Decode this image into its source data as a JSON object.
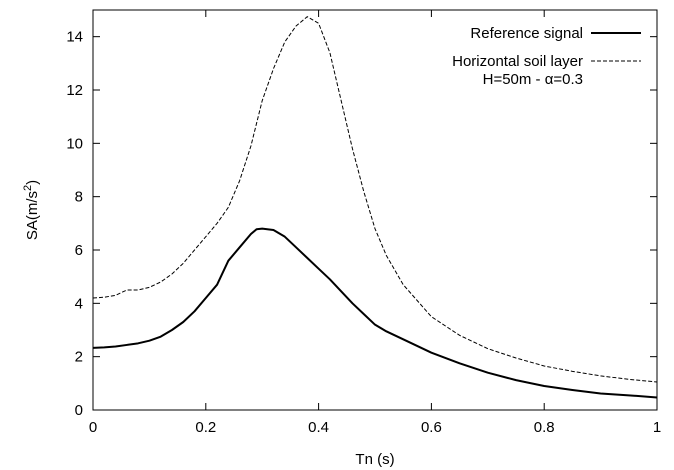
{
  "chart_data": {
    "type": "line",
    "xlabel": "Tn (s)",
    "ylabel_base": "SA(m/s",
    "ylabel_sup": "2",
    "ylabel_close": ")",
    "xlim": [
      0,
      1
    ],
    "ylim": [
      0,
      15
    ],
    "xticks": [
      "0",
      "0.2",
      "0.4",
      "0.6",
      "0.8",
      "1"
    ],
    "yticks": [
      "0",
      "2",
      "4",
      "6",
      "8",
      "10",
      "12",
      "14"
    ],
    "grid": false,
    "legend_position": "top-right",
    "series": [
      {
        "name": "Reference signal",
        "color": "#000000",
        "style": "solid",
        "points": [
          [
            0.0,
            2.33
          ],
          [
            0.02,
            2.35
          ],
          [
            0.04,
            2.38
          ],
          [
            0.06,
            2.44
          ],
          [
            0.08,
            2.5
          ],
          [
            0.1,
            2.6
          ],
          [
            0.12,
            2.75
          ],
          [
            0.14,
            3.0
          ],
          [
            0.16,
            3.3
          ],
          [
            0.18,
            3.7
          ],
          [
            0.2,
            4.2
          ],
          [
            0.22,
            4.7
          ],
          [
            0.24,
            5.6
          ],
          [
            0.26,
            6.1
          ],
          [
            0.28,
            6.6
          ],
          [
            0.29,
            6.78
          ],
          [
            0.3,
            6.8
          ],
          [
            0.32,
            6.75
          ],
          [
            0.34,
            6.5
          ],
          [
            0.36,
            6.1
          ],
          [
            0.38,
            5.7
          ],
          [
            0.4,
            5.3
          ],
          [
            0.42,
            4.9
          ],
          [
            0.44,
            4.45
          ],
          [
            0.46,
            4.0
          ],
          [
            0.48,
            3.6
          ],
          [
            0.5,
            3.2
          ],
          [
            0.52,
            2.95
          ],
          [
            0.55,
            2.65
          ],
          [
            0.6,
            2.15
          ],
          [
            0.65,
            1.75
          ],
          [
            0.7,
            1.4
          ],
          [
            0.75,
            1.12
          ],
          [
            0.8,
            0.9
          ],
          [
            0.85,
            0.75
          ],
          [
            0.9,
            0.62
          ],
          [
            0.95,
            0.55
          ],
          [
            1.0,
            0.47
          ]
        ]
      },
      {
        "name": "Horizontal soil layer",
        "name2": "H=50m - α=0.3",
        "color": "#000000",
        "style": "dashed",
        "points": [
          [
            0.0,
            4.2
          ],
          [
            0.02,
            4.23
          ],
          [
            0.04,
            4.3
          ],
          [
            0.06,
            4.5
          ],
          [
            0.08,
            4.5
          ],
          [
            0.1,
            4.6
          ],
          [
            0.12,
            4.8
          ],
          [
            0.14,
            5.1
          ],
          [
            0.16,
            5.5
          ],
          [
            0.18,
            6.0
          ],
          [
            0.2,
            6.5
          ],
          [
            0.22,
            7.0
          ],
          [
            0.24,
            7.6
          ],
          [
            0.26,
            8.6
          ],
          [
            0.28,
            9.9
          ],
          [
            0.3,
            11.6
          ],
          [
            0.32,
            12.8
          ],
          [
            0.34,
            13.8
          ],
          [
            0.36,
            14.4
          ],
          [
            0.38,
            14.75
          ],
          [
            0.4,
            14.5
          ],
          [
            0.42,
            13.4
          ],
          [
            0.44,
            11.6
          ],
          [
            0.46,
            9.8
          ],
          [
            0.48,
            8.2
          ],
          [
            0.5,
            6.8
          ],
          [
            0.52,
            5.8
          ],
          [
            0.55,
            4.7
          ],
          [
            0.6,
            3.5
          ],
          [
            0.65,
            2.8
          ],
          [
            0.7,
            2.3
          ],
          [
            0.75,
            1.95
          ],
          [
            0.8,
            1.65
          ],
          [
            0.85,
            1.45
          ],
          [
            0.9,
            1.28
          ],
          [
            0.95,
            1.15
          ],
          [
            1.0,
            1.05
          ]
        ]
      }
    ]
  }
}
